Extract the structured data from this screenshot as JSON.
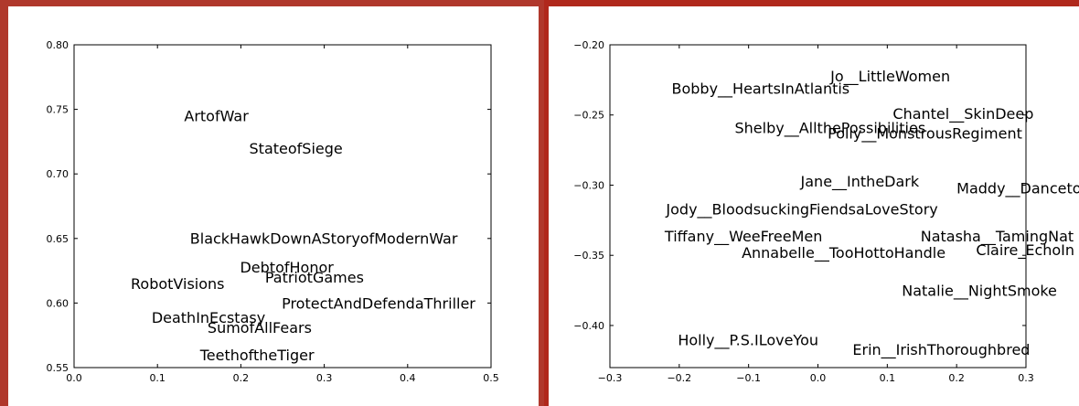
{
  "colors": {
    "frame_left": "#b0382c",
    "frame_right": "#b0281c",
    "axis": "#000000",
    "text": "#000000"
  },
  "chart_data": [
    {
      "type": "scatter",
      "marker": "text-label",
      "title": "",
      "xlabel": "",
      "ylabel": "",
      "xlim": [
        0.0,
        0.5
      ],
      "ylim": [
        0.55,
        0.8
      ],
      "grid": false,
      "x_ticks": [
        0.0,
        0.1,
        0.2,
        0.3,
        0.4,
        0.5
      ],
      "x_tick_labels": [
        "0.0",
        "0.1",
        "0.2",
        "0.3",
        "0.4",
        "0.5"
      ],
      "y_ticks": [
        0.55,
        0.6,
        0.65,
        0.7,
        0.75,
        0.8
      ],
      "y_tick_labels": [
        "0.55",
        "0.60",
        "0.65",
        "0.70",
        "0.75",
        "0.80"
      ],
      "points": [
        {
          "label": "ArtofWar",
          "x": 0.132,
          "y": 0.744
        },
        {
          "label": "StateofSiege",
          "x": 0.21,
          "y": 0.719
        },
        {
          "label": "BlackHawkDownAStoryofModernWar",
          "x": 0.139,
          "y": 0.649
        },
        {
          "label": "DebtofHonor",
          "x": 0.199,
          "y": 0.627
        },
        {
          "label": "PatriotGames",
          "x": 0.229,
          "y": 0.619
        },
        {
          "label": "RobotVisions",
          "x": 0.068,
          "y": 0.614
        },
        {
          "label": "ProtectAndDefendaThriller",
          "x": 0.249,
          "y": 0.599
        },
        {
          "label": "DeathInEcstasy",
          "x": 0.093,
          "y": 0.588
        },
        {
          "label": "SumofAllFears",
          "x": 0.16,
          "y": 0.58
        },
        {
          "label": "TeethoftheTiger",
          "x": 0.151,
          "y": 0.559
        }
      ]
    },
    {
      "type": "scatter",
      "marker": "text-label",
      "title": "",
      "xlabel": "",
      "ylabel": "",
      "xlim": [
        -0.3,
        0.3
      ],
      "ylim": [
        -0.43,
        -0.2
      ],
      "grid": false,
      "x_ticks": [
        -0.3,
        -0.2,
        -0.1,
        0.0,
        0.1,
        0.2,
        0.3
      ],
      "x_tick_labels": [
        "−0.3",
        "−0.2",
        "−0.1",
        "0.0",
        "0.1",
        "0.2",
        "0.3"
      ],
      "y_ticks": [
        -0.4,
        -0.35,
        -0.3,
        -0.25,
        -0.2
      ],
      "y_tick_labels": [
        "−0.40",
        "−0.35",
        "−0.30",
        "−0.25",
        "−0.20"
      ],
      "points": [
        {
          "label": "Jo__LittleWomen",
          "x": 0.018,
          "y": -0.223
        },
        {
          "label": "Bobby__HeartsInAtlantis",
          "x": -0.211,
          "y": -0.232
        },
        {
          "label": "Chantel__SkinDeep",
          "x": 0.108,
          "y": -0.25
        },
        {
          "label": "Shelby__AllthePossibilities",
          "x": -0.12,
          "y": -0.26
        },
        {
          "label": "Polly__MonstrousRegiment",
          "x": 0.014,
          "y": -0.264
        },
        {
          "label": "Jane__IntheDark",
          "x": -0.025,
          "y": -0.298
        },
        {
          "label": "Maddy__Danceto",
          "x": 0.2,
          "y": -0.303
        },
        {
          "label": "Jody__BloodsuckingFiendsaLoveStory",
          "x": -0.219,
          "y": -0.318
        },
        {
          "label": "Tiffany__WeeFreeMen",
          "x": -0.221,
          "y": -0.337
        },
        {
          "label": "Natasha__TamingNat",
          "x": 0.148,
          "y": -0.337
        },
        {
          "label": "Annabelle__TooHottoHandle",
          "x": -0.11,
          "y": -0.349
        },
        {
          "label": "Claire_EchoIn",
          "x": 0.228,
          "y": -0.347
        },
        {
          "label": "Natalie__NightSmoke",
          "x": 0.121,
          "y": -0.376
        },
        {
          "label": "Holly__P.S.ILoveYou",
          "x": -0.202,
          "y": -0.411
        },
        {
          "label": "Erin__IrishThoroughbred",
          "x": 0.05,
          "y": -0.418
        }
      ]
    }
  ]
}
